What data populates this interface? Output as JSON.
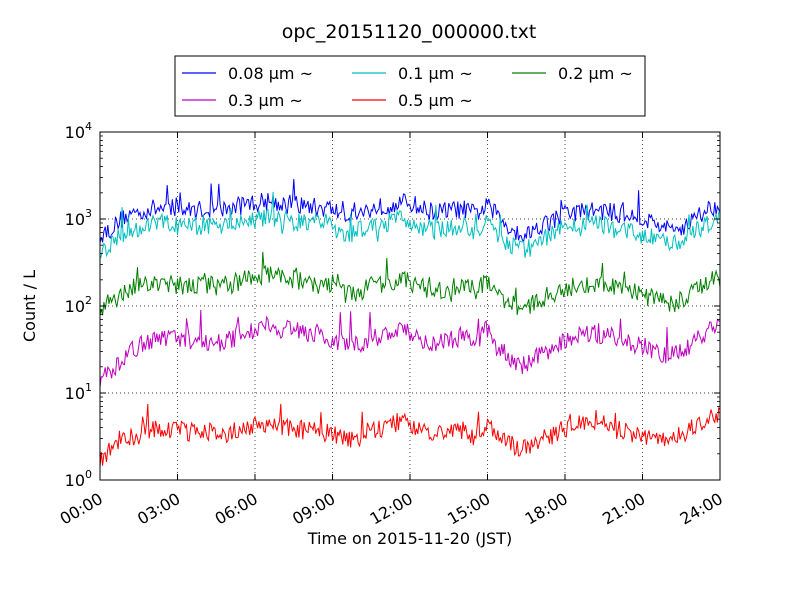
{
  "chart_data": {
    "type": "line",
    "title": "opc_20151120_000000.txt",
    "xlabel": "Time on 2015-11-20 (JST)",
    "ylabel": "Count / L",
    "x_unit": "hours",
    "xlim": [
      0,
      24
    ],
    "ylim": [
      1,
      10000
    ],
    "yscale": "log",
    "grid": true,
    "legend": {
      "placement": "top-center",
      "ncol": 3
    },
    "x_tick_labels": [
      "00:00",
      "03:00",
      "06:00",
      "09:00",
      "12:00",
      "15:00",
      "18:00",
      "21:00",
      "24:00"
    ],
    "x_ticks": [
      0,
      3,
      6,
      9,
      12,
      15,
      18,
      21,
      24
    ],
    "y_ticks": [
      1,
      10,
      100,
      1000,
      10000
    ],
    "y_tick_labels": [
      {
        "base": "10",
        "exp": "0"
      },
      {
        "base": "10",
        "exp": "1"
      },
      {
        "base": "10",
        "exp": "2"
      },
      {
        "base": "10",
        "exp": "3"
      },
      {
        "base": "10",
        "exp": "4"
      }
    ],
    "x": [
      0,
      0.5,
      1,
      1.5,
      2,
      2.5,
      3,
      3.5,
      4,
      4.5,
      5,
      5.5,
      6,
      6.5,
      7,
      7.5,
      8,
      8.5,
      9,
      9.5,
      10,
      10.5,
      11,
      11.5,
      12,
      12.5,
      13,
      13.5,
      14,
      14.5,
      15,
      15.5,
      16,
      16.5,
      17,
      17.5,
      18,
      18.5,
      19,
      19.5,
      20,
      20.5,
      21,
      21.5,
      22,
      22.5,
      23,
      23.5,
      24
    ],
    "series": [
      {
        "name": "0.08 μm ~",
        "color": "#0000ff",
        "values": [
          650,
          800,
          1100,
          1200,
          1300,
          1350,
          1300,
          1250,
          1300,
          1250,
          1300,
          1450,
          1550,
          1600,
          1550,
          1450,
          1400,
          1350,
          1300,
          1100,
          1150,
          1300,
          1400,
          1500,
          1550,
          1300,
          1200,
          1250,
          1300,
          1150,
          1400,
          1000,
          750,
          650,
          850,
          950,
          1150,
          1200,
          1250,
          1250,
          1150,
          1100,
          1000,
          900,
          750,
          800,
          1000,
          1300,
          1450
        ]
      },
      {
        "name": "0.1 μm ~",
        "color": "#00bfbf",
        "values": [
          430,
          550,
          700,
          800,
          850,
          900,
          820,
          800,
          850,
          850,
          880,
          950,
          1000,
          1050,
          1020,
          950,
          900,
          880,
          800,
          700,
          720,
          850,
          900,
          1000,
          950,
          800,
          750,
          800,
          850,
          720,
          880,
          600,
          480,
          430,
          580,
          650,
          800,
          800,
          850,
          850,
          750,
          720,
          650,
          600,
          520,
          560,
          700,
          900,
          1050
        ]
      },
      {
        "name": "0.2 μm ~",
        "color": "#008000",
        "values": [
          95,
          115,
          150,
          175,
          185,
          180,
          170,
          165,
          175,
          170,
          175,
          200,
          220,
          230,
          220,
          200,
          185,
          175,
          165,
          140,
          145,
          170,
          185,
          200,
          190,
          160,
          150,
          160,
          175,
          150,
          200,
          130,
          105,
          90,
          120,
          135,
          165,
          170,
          180,
          175,
          160,
          150,
          135,
          125,
          105,
          115,
          145,
          190,
          210
        ]
      },
      {
        "name": "0.3 μm ~",
        "color": "#bf00bf",
        "values": [
          14,
          19,
          27,
          35,
          40,
          42,
          40,
          38,
          40,
          38,
          40,
          48,
          55,
          60,
          57,
          52,
          48,
          45,
          42,
          35,
          37,
          43,
          47,
          52,
          48,
          40,
          38,
          40,
          45,
          38,
          55,
          32,
          24,
          20,
          28,
          32,
          42,
          45,
          48,
          47,
          42,
          38,
          34,
          30,
          27,
          30,
          38,
          50,
          60
        ]
      },
      {
        "name": "0.5 μm ~",
        "color": "#ff0000",
        "values": [
          1.7,
          2.4,
          2.9,
          3.3,
          3.7,
          4.0,
          3.8,
          3.5,
          3.6,
          3.4,
          3.5,
          3.9,
          4.3,
          4.4,
          4.2,
          3.9,
          3.7,
          3.5,
          3.4,
          3.0,
          3.1,
          3.6,
          4.0,
          4.6,
          4.4,
          3.7,
          3.4,
          3.4,
          3.7,
          3.2,
          4.6,
          3.2,
          2.5,
          2.2,
          2.9,
          3.3,
          4.0,
          4.3,
          4.6,
          4.4,
          3.8,
          3.4,
          3.1,
          3.0,
          2.9,
          3.3,
          4.0,
          5.0,
          5.3
        ]
      }
    ]
  }
}
